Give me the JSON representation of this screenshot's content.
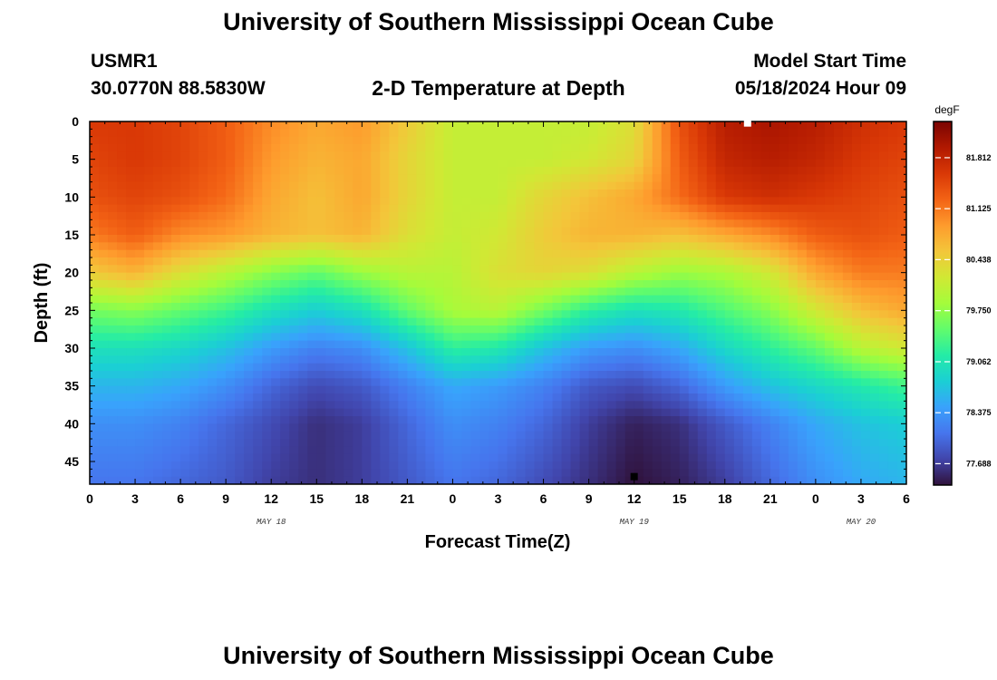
{
  "page": {
    "title_top": "University of Southern Mississippi Ocean Cube",
    "title_bottom": "University of Southern Mississippi Ocean Cube",
    "station_id": "USMR1",
    "station_coords": "30.0770N  88.5830W",
    "plot_title": "2-D Temperature at Depth",
    "model_start_label": "Model Start Time",
    "model_start_value": "05/18/2024 Hour 09"
  },
  "chart_data": {
    "type": "heatmap",
    "title": "2-D Temperature at Depth",
    "xlabel": "Forecast Time(Z)",
    "ylabel": "Depth (ft)",
    "x_range_hours": [
      0,
      54
    ],
    "ylim": [
      0,
      48
    ],
    "x_tick_labels": [
      "0",
      "3",
      "6",
      "9",
      "12",
      "15",
      "18",
      "21",
      "0",
      "3",
      "6",
      "9",
      "12",
      "15",
      "18",
      "21",
      "0",
      "3",
      "6"
    ],
    "y_tick_labels": [
      "0",
      "5",
      "10",
      "15",
      "20",
      "25",
      "30",
      "35",
      "40",
      "45"
    ],
    "y_tick_values": [
      0,
      5,
      10,
      15,
      20,
      25,
      30,
      35,
      40,
      45
    ],
    "date_labels": [
      {
        "label": "MAY 18",
        "hour": 12
      },
      {
        "label": "MAY 19",
        "hour": 36
      },
      {
        "label": "MAY 20",
        "hour": 51
      }
    ],
    "colorbar": {
      "unit": "degF",
      "min": 77.4,
      "max": 82.3,
      "tick_labels": [
        "81.812",
        "81.125",
        "80.438",
        "79.750",
        "79.062",
        "78.375",
        "77.688"
      ],
      "tick_values": [
        81.812,
        81.125,
        80.438,
        79.75,
        79.062,
        78.375,
        77.688
      ],
      "palette": [
        "#30123b",
        "#4145ab",
        "#4675ed",
        "#39a2fc",
        "#1bcfd4",
        "#24eca6",
        "#61fc6c",
        "#a4fc3b",
        "#d1e834",
        "#f3c63a",
        "#fe9b2d",
        "#f36315",
        "#d93806",
        "#b11901",
        "#7a0402"
      ]
    },
    "markers": [
      {
        "hour": 43.5,
        "depth": 0.2,
        "color": "#ffffff"
      },
      {
        "hour": 36,
        "depth": 47,
        "color": "#000000"
      }
    ],
    "temperature_grid": {
      "depths_ft": [
        0,
        5,
        10,
        15,
        20,
        25,
        30,
        35,
        40,
        48
      ],
      "hours": [
        0,
        3,
        6,
        9,
        12,
        15,
        18,
        21,
        24,
        27,
        30,
        33,
        36,
        39,
        42,
        45,
        48,
        51,
        54
      ],
      "values": [
        [
          81.6,
          81.6,
          81.5,
          81.3,
          81.0,
          80.8,
          80.9,
          80.5,
          80.1,
          80.1,
          80.1,
          80.1,
          80.3,
          81.4,
          81.9,
          82.0,
          81.9,
          81.7,
          81.6
        ],
        [
          81.5,
          81.6,
          81.5,
          81.3,
          80.9,
          80.7,
          80.8,
          80.4,
          80.1,
          80.1,
          80.1,
          80.2,
          80.4,
          81.3,
          81.8,
          81.9,
          81.8,
          81.6,
          81.5
        ],
        [
          81.4,
          81.5,
          81.4,
          81.2,
          80.8,
          80.6,
          80.8,
          80.4,
          80.1,
          80.1,
          80.4,
          80.6,
          80.8,
          81.2,
          81.6,
          81.7,
          81.6,
          81.5,
          81.4
        ],
        [
          81.1,
          81.3,
          81.0,
          80.9,
          80.7,
          80.6,
          80.7,
          80.3,
          80.1,
          80.2,
          80.5,
          80.7,
          80.7,
          80.6,
          80.8,
          81.0,
          81.3,
          81.4,
          81.3
        ],
        [
          80.5,
          80.7,
          80.3,
          80.0,
          79.7,
          79.5,
          79.8,
          80.0,
          80.0,
          80.3,
          80.4,
          80.3,
          80.0,
          79.8,
          79.9,
          80.2,
          80.8,
          81.1,
          81.1
        ],
        [
          79.6,
          79.7,
          79.5,
          79.3,
          79.0,
          78.8,
          79.0,
          79.5,
          79.9,
          80.0,
          79.6,
          79.2,
          79.0,
          79.1,
          79.4,
          79.7,
          80.2,
          80.6,
          80.8
        ],
        [
          79.0,
          79.0,
          78.9,
          78.7,
          78.4,
          78.2,
          78.3,
          78.7,
          79.2,
          79.1,
          78.7,
          78.4,
          78.3,
          78.5,
          78.9,
          79.2,
          79.5,
          80.0,
          80.2
        ],
        [
          78.6,
          78.6,
          78.5,
          78.3,
          78.0,
          77.8,
          77.9,
          78.2,
          78.5,
          78.4,
          78.2,
          77.9,
          77.8,
          78.0,
          78.4,
          78.7,
          78.9,
          79.1,
          79.3
        ],
        [
          78.3,
          78.3,
          78.2,
          78.0,
          77.8,
          77.6,
          77.7,
          78.0,
          78.3,
          78.2,
          78.0,
          77.7,
          77.5,
          77.6,
          77.9,
          78.2,
          78.5,
          78.7,
          78.8
        ],
        [
          78.1,
          78.1,
          78.0,
          77.9,
          77.7,
          77.6,
          77.7,
          77.9,
          78.1,
          78.0,
          77.8,
          77.6,
          77.4,
          77.5,
          77.7,
          78.0,
          78.3,
          78.5,
          78.6
        ]
      ]
    }
  }
}
